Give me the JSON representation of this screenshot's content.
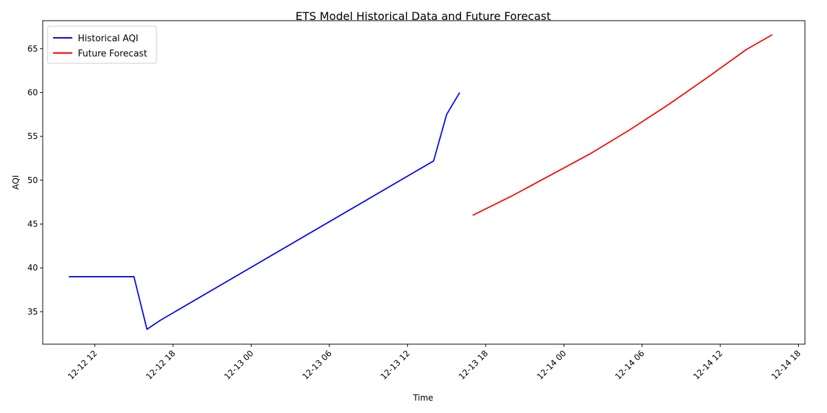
{
  "chart_data": {
    "type": "line",
    "title": "ETS Model Historical Data and Future Forecast",
    "xlabel": "Time",
    "ylabel": "AQI",
    "x_type": "datetime",
    "xlim": [
      "2012-12-12T08:00",
      "2012-12-14T18:30"
    ],
    "ylim": [
      31.3,
      68.2
    ],
    "x_ticks": [
      "2012-12-12T12:00",
      "2012-12-12T18:00",
      "2012-12-13T00:00",
      "2012-12-13T06:00",
      "2012-12-13T12:00",
      "2012-12-13T18:00",
      "2012-12-14T00:00",
      "2012-12-14T06:00",
      "2012-12-14T12:00",
      "2012-12-14T18:00"
    ],
    "x_tick_labels": [
      "12-12 12",
      "12-12 18",
      "12-13 00",
      "12-13 06",
      "12-13 12",
      "12-13 18",
      "12-14 00",
      "12-14 06",
      "12-14 12",
      "12-14 18"
    ],
    "y_ticks": [
      35,
      40,
      45,
      50,
      55,
      60,
      65
    ],
    "grid": false,
    "legend": "upper-left",
    "series": [
      {
        "name": "Historical AQI",
        "color": "#0000ff",
        "x": [
          "2012-12-12T10:00",
          "2012-12-12T15:00",
          "2012-12-12T16:00",
          "2012-12-12T17:00",
          "2012-12-13T14:00",
          "2012-12-13T15:00",
          "2012-12-13T16:00"
        ],
        "y": [
          39.0,
          39.0,
          33.0,
          34.0,
          52.2,
          57.5,
          60.0
        ]
      },
      {
        "name": "Future Forecast",
        "color": "#ff0000",
        "x": [
          "2012-12-13T17:00",
          "2012-12-13T20:00",
          "2012-12-13T23:00",
          "2012-12-14T02:00",
          "2012-12-14T05:00",
          "2012-12-14T08:00",
          "2012-12-14T11:00",
          "2012-12-14T14:00",
          "2012-12-14T16:00"
        ],
        "y": [
          46.0,
          48.2,
          50.6,
          53.0,
          55.7,
          58.6,
          61.7,
          64.9,
          66.6
        ]
      }
    ]
  }
}
